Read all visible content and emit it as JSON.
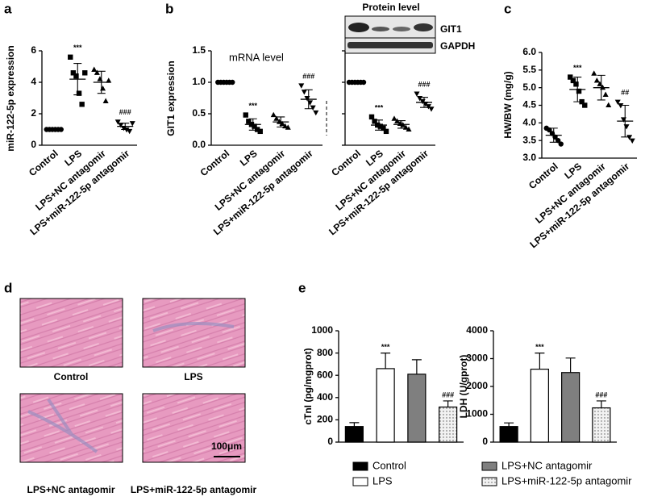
{
  "chart_data": [
    {
      "type": "dot",
      "panel": "a",
      "ylabel": "miR-122-5p expression",
      "categories": [
        "Control",
        "LPS",
        "LPS+NC antagomir",
        "LPS+miR-122-5p antagomir"
      ],
      "points": [
        [
          1,
          1,
          1,
          1,
          1,
          1
        ],
        [
          5.6,
          4.6,
          4.4,
          3.3,
          2.6,
          4.6
        ],
        [
          4.8,
          4.6,
          4.2,
          3.6,
          2.8,
          4.1
        ],
        [
          1.5,
          1.3,
          1.1,
          1.0,
          0.9,
          1.4
        ]
      ],
      "means": [
        1,
        4.2,
        4.0,
        1.2
      ],
      "sd": [
        0,
        1.0,
        0.7,
        0.2
      ],
      "annotations": [
        null,
        "***",
        null,
        "###"
      ],
      "markers": [
        "circle",
        "square",
        "triangle-up",
        "triangle-down"
      ],
      "color": "#000000",
      "ylim": [
        0,
        6
      ],
      "yticks": [
        0,
        2,
        4,
        6
      ]
    },
    {
      "type": "dot",
      "panel": "b",
      "ylabel": "GIT1 expression",
      "subtitle": "mRNA level",
      "categories": [
        "Control",
        "LPS",
        "LPS+NC antagomir",
        "LPS+miR-122-5p antagomir"
      ],
      "points": [
        [
          1,
          1,
          1,
          1,
          1,
          1
        ],
        [
          0.48,
          0.38,
          0.33,
          0.3,
          0.25,
          0.22
        ],
        [
          0.48,
          0.42,
          0.37,
          0.34,
          0.3,
          0.28
        ],
        [
          0.95,
          0.85,
          0.75,
          0.68,
          0.6,
          0.52
        ]
      ],
      "means": [
        1,
        0.33,
        0.37,
        0.73
      ],
      "sd": [
        0,
        0.09,
        0.08,
        0.15
      ],
      "annotations": [
        null,
        "***",
        null,
        "###"
      ],
      "markers": [
        "circle",
        "square",
        "triangle-up",
        "triangle-down"
      ],
      "color": "#000000",
      "ylim": [
        0,
        1.5
      ],
      "yticks": [
        {
          "value": 0,
          "label": "0.0"
        },
        0.5,
        {
          "value": 1,
          "label": "1.0"
        },
        1.5
      ]
    },
    {
      "type": "dot",
      "subtitle": "Protein level",
      "blot_bands": [
        "GIT1",
        "GAPDH"
      ],
      "categories": [
        "Control",
        "LPS",
        "LPS+NC antagomir",
        "LPS+miR-122-5p antagomir"
      ],
      "points": [
        [
          1,
          1,
          1,
          1,
          1,
          1
        ],
        [
          0.45,
          0.38,
          0.32,
          0.3,
          0.27,
          0.22
        ],
        [
          0.42,
          0.38,
          0.34,
          0.32,
          0.28,
          0.25
        ],
        [
          0.82,
          0.75,
          0.7,
          0.66,
          0.62,
          0.58
        ]
      ],
      "means": [
        1,
        0.32,
        0.33,
        0.68
      ],
      "sd": [
        0,
        0.08,
        0.06,
        0.08
      ],
      "annotations": [
        null,
        "***",
        null,
        "###"
      ],
      "markers": [
        "circle",
        "square",
        "triangle-up",
        "triangle-down"
      ],
      "color": "#000000",
      "ylim": [
        0,
        1.5
      ],
      "yticks": [
        {
          "value": 0,
          "label": "0.0"
        },
        0.5,
        {
          "value": 1,
          "label": "1.0"
        },
        1.5
      ]
    },
    {
      "type": "dot",
      "panel": "c",
      "ylabel": "HW/BW (mg/g)",
      "categories": [
        "Control",
        "LPS",
        "LPS+NC antagomir",
        "LPS+miR-122-5p antagomir"
      ],
      "points": [
        [
          3.85,
          3.8,
          3.7,
          3.6,
          3.5,
          3.4
        ],
        [
          5.3,
          5.2,
          5.1,
          4.9,
          4.6,
          4.5
        ],
        [
          5.4,
          5.2,
          5.1,
          5.0,
          4.8,
          4.5
        ],
        [
          4.6,
          4.5,
          4.1,
          3.9,
          3.6,
          3.5
        ]
      ],
      "means": [
        3.65,
        4.95,
        5.0,
        4.05
      ],
      "sd": [
        0.2,
        0.35,
        0.35,
        0.45
      ],
      "annotations": [
        null,
        "***",
        null,
        "##"
      ],
      "markers": [
        "circle",
        "square",
        "triangle-up",
        "triangle-down"
      ],
      "color": "#000000",
      "ylim": [
        3,
        6
      ],
      "yticks": [
        {
          "value": 3,
          "label": "3.0"
        },
        3.5,
        {
          "value": 4,
          "label": "4.0"
        },
        4.5,
        {
          "value": 5,
          "label": "5.0"
        },
        5.5,
        {
          "value": 6,
          "label": "6.0"
        }
      ]
    },
    {
      "type": "bar",
      "panel": "e",
      "ylabel": "cTnI (pg/mgprot)",
      "categories": [
        "Control",
        "LPS",
        "LPS+NC antagomir",
        "LPS+miR-122-5p antagomir"
      ],
      "values": [
        140,
        660,
        610,
        315
      ],
      "errors": [
        35,
        140,
        130,
        55
      ],
      "annotations": [
        null,
        "***",
        null,
        "###"
      ],
      "colors": [
        "#000000",
        "#ffffff",
        "#7f7f7f",
        "#e6e6e6"
      ],
      "fills": [
        "solid",
        "solid",
        "solid",
        "dotted"
      ],
      "ylim": [
        0,
        1000
      ],
      "yticks": [
        0,
        200,
        400,
        600,
        800,
        1000
      ]
    },
    {
      "type": "bar",
      "ylabel": "LDH (U/gprot)",
      "categories": [
        "Control",
        "LPS",
        "LPS+NC antagomir",
        "LPS+miR-122-5p antagomir"
      ],
      "values": [
        560,
        2620,
        2500,
        1230
      ],
      "errors": [
        130,
        580,
        520,
        250
      ],
      "annotations": [
        null,
        "***",
        null,
        "###"
      ],
      "colors": [
        "#000000",
        "#ffffff",
        "#7f7f7f",
        "#e6e6e6"
      ],
      "fills": [
        "solid",
        "solid",
        "solid",
        "dotted"
      ],
      "ylim": [
        0,
        4000
      ],
      "yticks": [
        0,
        1000,
        2000,
        3000,
        4000
      ]
    }
  ],
  "histology": {
    "panel": "d",
    "images": [
      "Control",
      "LPS",
      "LPS+NC antagomir",
      "LPS+miR-122-5p antagomir"
    ],
    "scale_bar": "100μm"
  }
}
